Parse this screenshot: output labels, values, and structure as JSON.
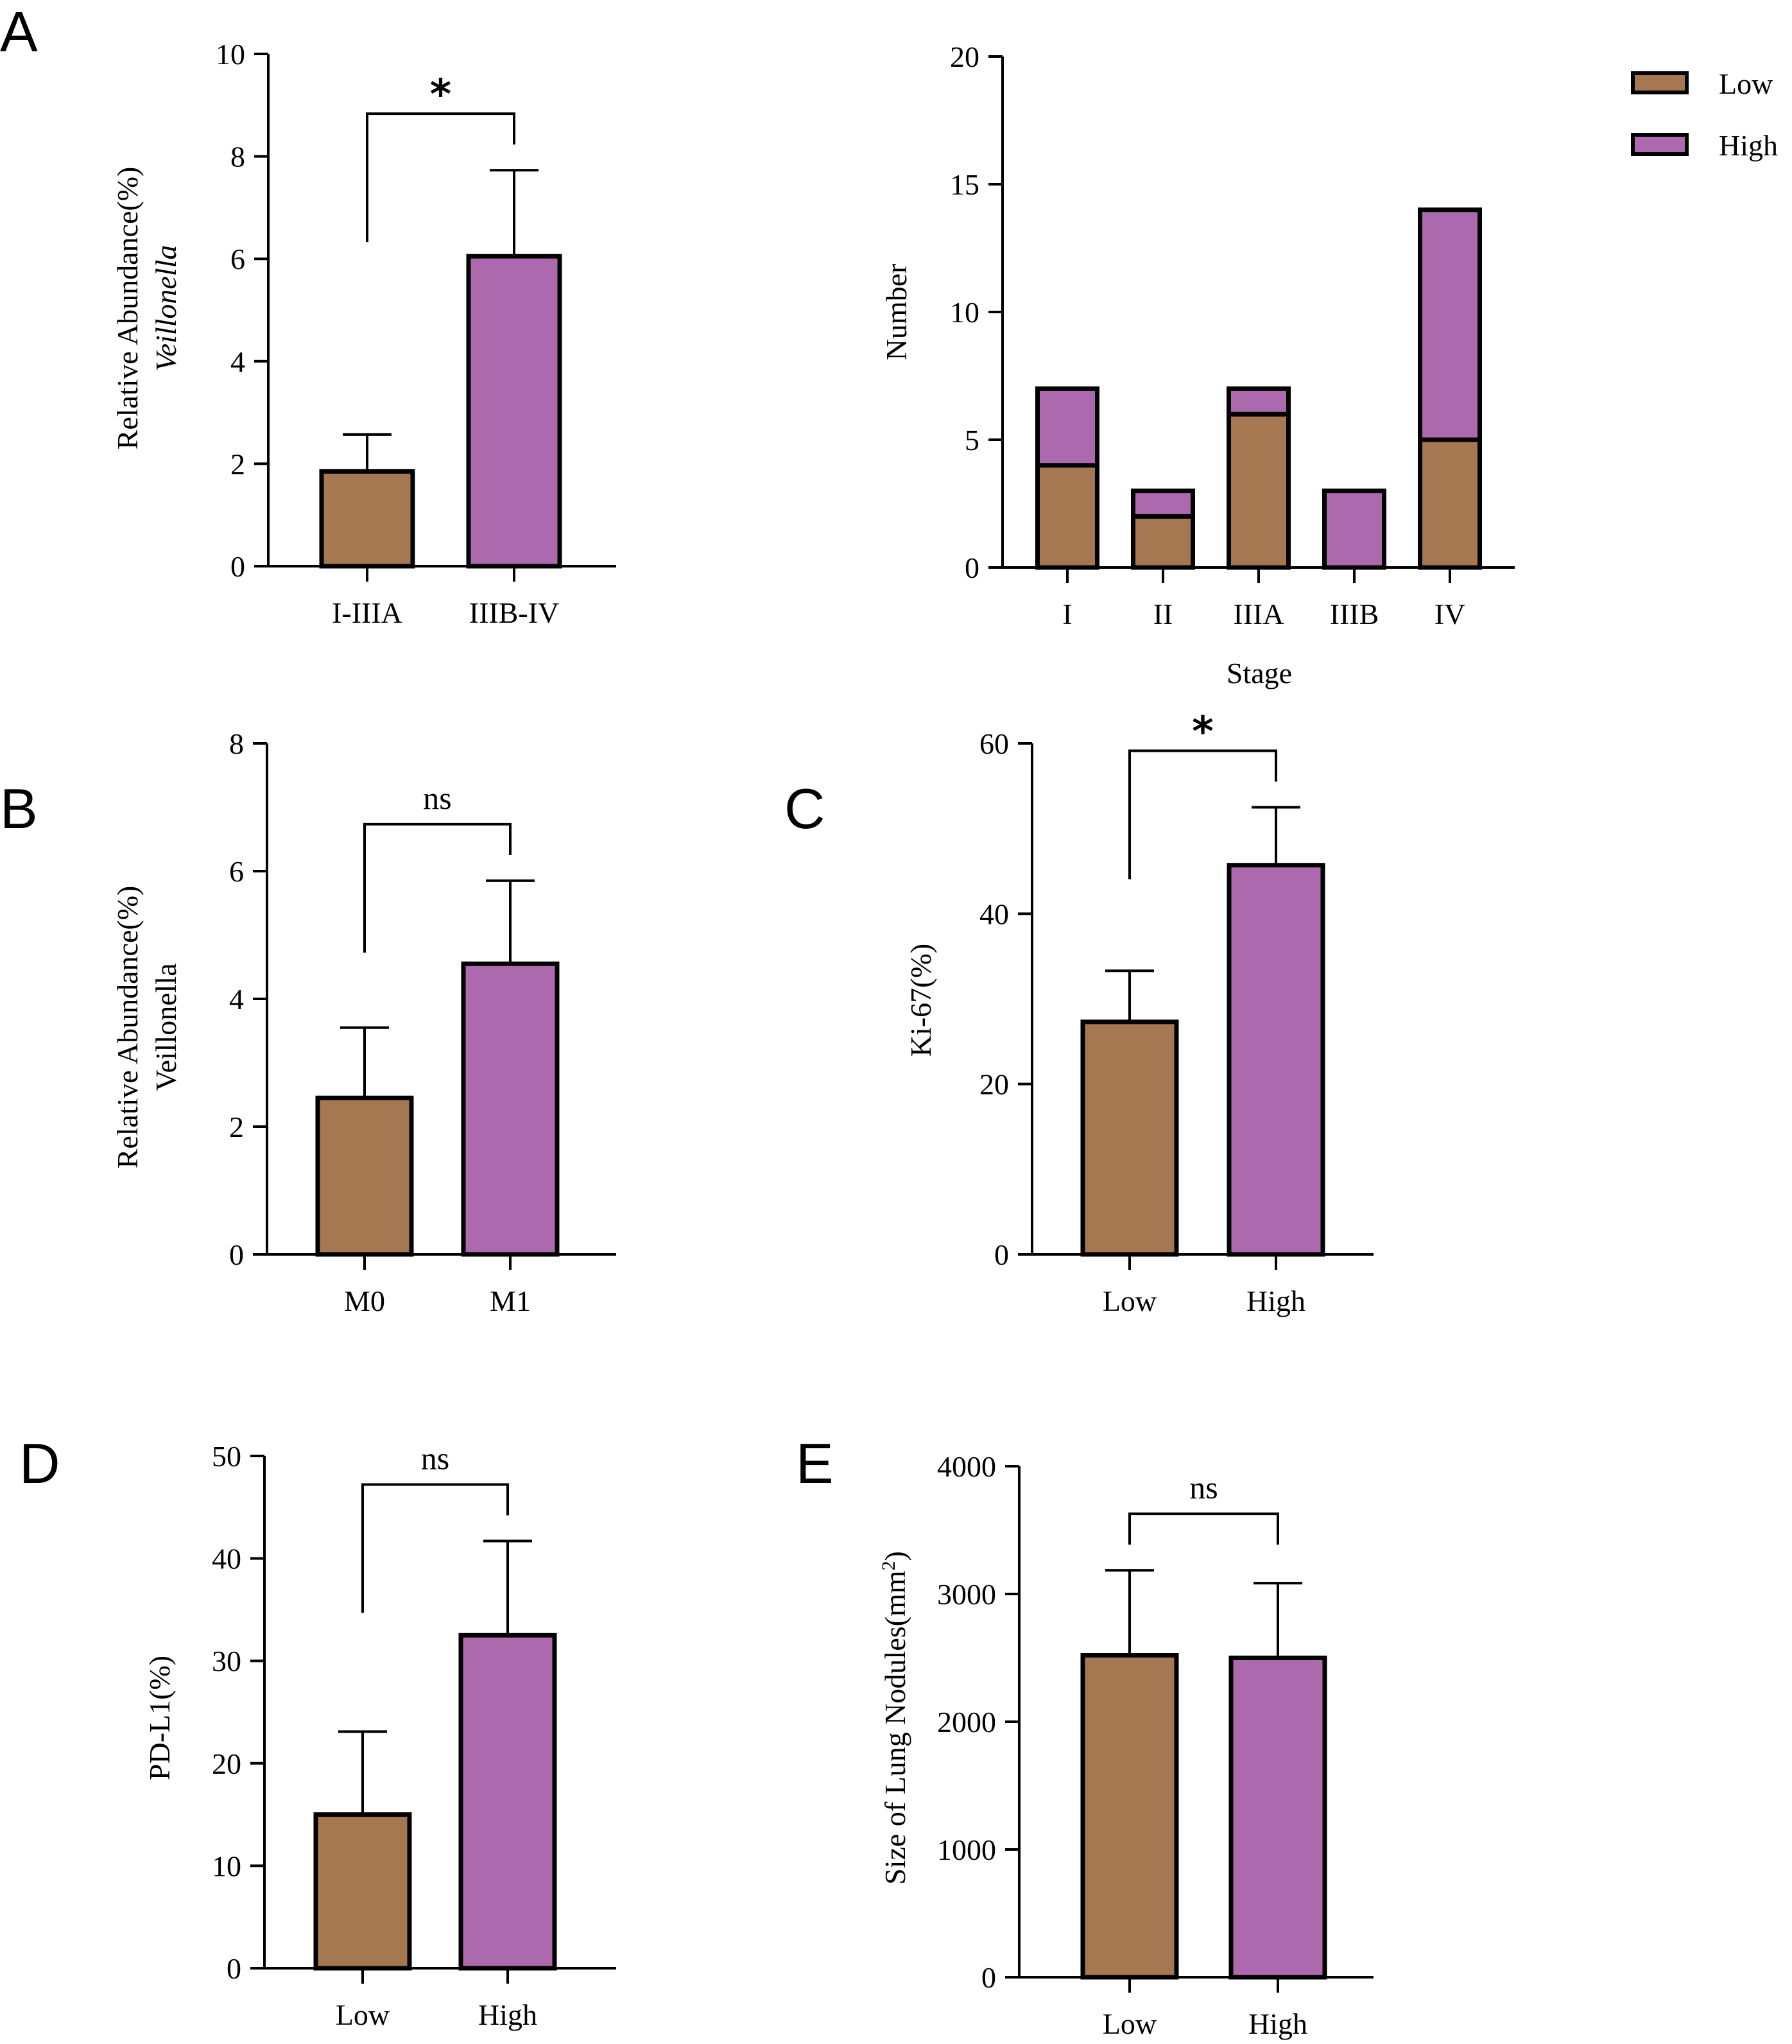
{
  "colors": {
    "low": "#A57851",
    "high": "#AC69AD",
    "stroke": "#000000"
  },
  "chart_data": [
    {
      "panel": "A",
      "type": "bar",
      "categories": [
        "I-IIIA",
        "IIIB-IV"
      ],
      "values": [
        1.85,
        6.05
      ],
      "errors": [
        0.72,
        1.68
      ],
      "ylabel": "Relative Abundance(%)",
      "ylabel_italic": "Veillonella",
      "xlabel": "",
      "ylim": [
        0,
        10
      ],
      "yticks": [
        "0",
        "2",
        "4",
        "6",
        "8",
        "10"
      ],
      "significance": "*"
    },
    {
      "panel": "A2",
      "type": "bar",
      "stacked": true,
      "categories": [
        "I",
        "II",
        "IIIA",
        "IIIB",
        "IV"
      ],
      "series": [
        {
          "name": "Low",
          "values": [
            4,
            2,
            6,
            0,
            5
          ]
        },
        {
          "name": "High",
          "values": [
            3,
            1,
            1,
            3,
            9
          ]
        }
      ],
      "xlabel": "Stage",
      "ylabel": "Number",
      "ylim": [
        0,
        20
      ],
      "yticks": [
        "0",
        "5",
        "10",
        "15",
        "20"
      ],
      "legend": [
        "Low",
        "High"
      ],
      "legend_position": "top-right"
    },
    {
      "panel": "B",
      "type": "bar",
      "categories": [
        "M0",
        "M1"
      ],
      "values": [
        2.45,
        4.55
      ],
      "errors": [
        1.1,
        1.3
      ],
      "ylabel": "Relative Abundance(%)",
      "ylabel2": "Veillonella",
      "xlabel": "",
      "ylim": [
        0,
        8
      ],
      "yticks": [
        "0",
        "2",
        "4",
        "6",
        "8"
      ],
      "significance": "ns"
    },
    {
      "panel": "C",
      "type": "bar",
      "categories": [
        "Low",
        "High"
      ],
      "values": [
        27.3,
        45.7
      ],
      "errors": [
        6.0,
        6.8
      ],
      "ylabel": "Ki-67(%)",
      "xlabel": "",
      "ylim": [
        0,
        60
      ],
      "yticks": [
        "0",
        "20",
        "40",
        "60"
      ],
      "significance": "*"
    },
    {
      "panel": "D",
      "type": "bar",
      "categories": [
        "Low",
        "High"
      ],
      "values": [
        15.0,
        32.5
      ],
      "errors": [
        8.1,
        9.2
      ],
      "ylabel": "PD-L1(%)",
      "xlabel": "",
      "ylim": [
        0,
        50
      ],
      "yticks": [
        "0",
        "10",
        "20",
        "30",
        "40",
        "50"
      ],
      "significance": "ns"
    },
    {
      "panel": "E",
      "type": "bar",
      "categories": [
        "Low",
        "High"
      ],
      "values": [
        2520,
        2500
      ],
      "errors": [
        665,
        585
      ],
      "ylabel": "Size of Lung Nodules(mm",
      "ylabel_sup": "2",
      "ylabel_tail": ")",
      "xlabel": "",
      "ylim": [
        0,
        4000
      ],
      "yticks": [
        "0",
        "1000",
        "2000",
        "3000",
        "4000"
      ],
      "significance": "ns"
    }
  ]
}
